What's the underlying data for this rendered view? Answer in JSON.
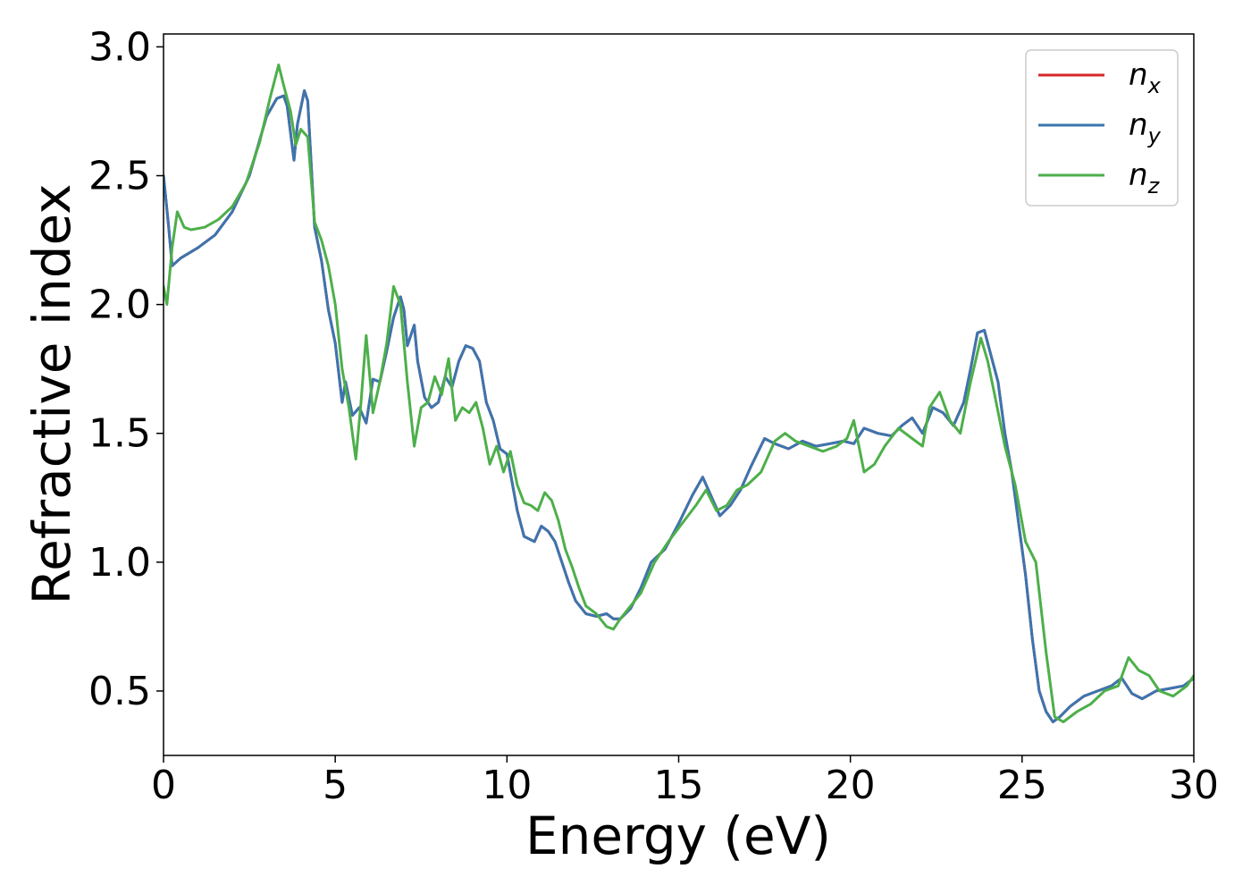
{
  "chart_data": {
    "type": "line",
    "xlabel": "Energy (eV)",
    "ylabel": "Refractive index",
    "xlim": [
      0,
      30
    ],
    "ylim": [
      0.25,
      3.05
    ],
    "xticks": [
      0,
      5,
      10,
      15,
      20,
      25,
      30
    ],
    "yticks": [
      0.5,
      1.0,
      1.5,
      2.0,
      2.5,
      3.0
    ],
    "xtick_labels": [
      "0",
      "5",
      "10",
      "15",
      "20",
      "25",
      "30"
    ],
    "ytick_labels": [
      "0.5",
      "1.0",
      "1.5",
      "2.0",
      "2.5",
      "3.0"
    ],
    "grid": false,
    "legend_position": "top-right",
    "series": [
      {
        "name": "n",
        "subscript": "x",
        "color": "#d62728",
        "x": [
          0,
          0.15,
          0.25,
          0.5,
          1.0,
          1.5,
          2.0,
          2.5,
          3.0,
          3.3,
          3.5,
          3.6,
          3.8,
          3.9,
          4.1,
          4.2,
          4.4,
          4.6,
          4.8,
          5.0,
          5.2,
          5.3,
          5.5,
          5.7,
          5.9,
          6.1,
          6.3,
          6.5,
          6.7,
          6.9,
          7.0,
          7.1,
          7.3,
          7.4,
          7.6,
          7.8,
          8.0,
          8.2,
          8.4,
          8.6,
          8.8,
          9.0,
          9.2,
          9.4,
          9.6,
          9.8,
          10.0,
          10.3,
          10.5,
          10.8,
          11.0,
          11.2,
          11.4,
          11.6,
          11.8,
          12.0,
          12.3,
          12.6,
          12.9,
          13.1,
          13.3,
          13.6,
          13.9,
          14.2,
          14.6,
          15.0,
          15.4,
          15.7,
          15.9,
          16.2,
          16.5,
          16.8,
          17.1,
          17.5,
          17.8,
          18.2,
          18.6,
          19.0,
          19.4,
          19.8,
          20.1,
          20.4,
          20.8,
          21.2,
          21.5,
          21.8,
          22.1,
          22.4,
          22.7,
          23.0,
          23.3,
          23.5,
          23.7,
          23.9,
          24.1,
          24.3,
          24.5,
          24.7,
          24.9,
          25.1,
          25.3,
          25.5,
          25.7,
          25.9,
          26.1,
          26.4,
          26.8,
          27.2,
          27.6,
          27.9,
          28.2,
          28.5,
          28.9,
          29.3,
          29.7,
          30.0
        ],
        "values": [
          2.5,
          2.3,
          2.15,
          2.18,
          2.22,
          2.27,
          2.36,
          2.5,
          2.73,
          2.8,
          2.81,
          2.77,
          2.56,
          2.7,
          2.83,
          2.79,
          2.3,
          2.17,
          1.98,
          1.85,
          1.62,
          1.7,
          1.57,
          1.6,
          1.54,
          1.71,
          1.7,
          1.82,
          1.95,
          2.03,
          1.98,
          1.84,
          1.92,
          1.78,
          1.64,
          1.6,
          1.62,
          1.72,
          1.68,
          1.78,
          1.84,
          1.83,
          1.78,
          1.62,
          1.55,
          1.44,
          1.42,
          1.2,
          1.1,
          1.08,
          1.14,
          1.12,
          1.08,
          1.0,
          0.92,
          0.85,
          0.8,
          0.79,
          0.8,
          0.78,
          0.78,
          0.82,
          0.9,
          1.0,
          1.05,
          1.15,
          1.26,
          1.33,
          1.27,
          1.18,
          1.22,
          1.28,
          1.37,
          1.48,
          1.46,
          1.44,
          1.47,
          1.45,
          1.46,
          1.47,
          1.46,
          1.52,
          1.5,
          1.49,
          1.53,
          1.56,
          1.5,
          1.6,
          1.58,
          1.53,
          1.62,
          1.75,
          1.89,
          1.9,
          1.8,
          1.7,
          1.5,
          1.35,
          1.15,
          0.95,
          0.7,
          0.5,
          0.42,
          0.38,
          0.4,
          0.44,
          0.48,
          0.5,
          0.52,
          0.55,
          0.49,
          0.47,
          0.5,
          0.51,
          0.52,
          0.55
        ]
      },
      {
        "name": "n",
        "subscript": "y",
        "color": "#3b75af",
        "x": [
          0,
          0.15,
          0.25,
          0.5,
          1.0,
          1.5,
          2.0,
          2.5,
          3.0,
          3.3,
          3.5,
          3.6,
          3.8,
          3.9,
          4.1,
          4.2,
          4.4,
          4.6,
          4.8,
          5.0,
          5.2,
          5.3,
          5.5,
          5.7,
          5.9,
          6.1,
          6.3,
          6.5,
          6.7,
          6.9,
          7.0,
          7.1,
          7.3,
          7.4,
          7.6,
          7.8,
          8.0,
          8.2,
          8.4,
          8.6,
          8.8,
          9.0,
          9.2,
          9.4,
          9.6,
          9.8,
          10.0,
          10.3,
          10.5,
          10.8,
          11.0,
          11.2,
          11.4,
          11.6,
          11.8,
          12.0,
          12.3,
          12.6,
          12.9,
          13.1,
          13.3,
          13.6,
          13.9,
          14.2,
          14.6,
          15.0,
          15.4,
          15.7,
          15.9,
          16.2,
          16.5,
          16.8,
          17.1,
          17.5,
          17.8,
          18.2,
          18.6,
          19.0,
          19.4,
          19.8,
          20.1,
          20.4,
          20.8,
          21.2,
          21.5,
          21.8,
          22.1,
          22.4,
          22.7,
          23.0,
          23.3,
          23.5,
          23.7,
          23.9,
          24.1,
          24.3,
          24.5,
          24.7,
          24.9,
          25.1,
          25.3,
          25.5,
          25.7,
          25.9,
          26.1,
          26.4,
          26.8,
          27.2,
          27.6,
          27.9,
          28.2,
          28.5,
          28.9,
          29.3,
          29.7,
          30.0
        ],
        "values": [
          2.5,
          2.3,
          2.15,
          2.18,
          2.22,
          2.27,
          2.36,
          2.5,
          2.73,
          2.8,
          2.81,
          2.77,
          2.56,
          2.7,
          2.83,
          2.79,
          2.3,
          2.17,
          1.98,
          1.85,
          1.62,
          1.7,
          1.57,
          1.6,
          1.54,
          1.71,
          1.7,
          1.82,
          1.95,
          2.03,
          1.98,
          1.84,
          1.92,
          1.78,
          1.64,
          1.6,
          1.62,
          1.72,
          1.68,
          1.78,
          1.84,
          1.83,
          1.78,
          1.62,
          1.55,
          1.44,
          1.42,
          1.2,
          1.1,
          1.08,
          1.14,
          1.12,
          1.08,
          1.0,
          0.92,
          0.85,
          0.8,
          0.79,
          0.8,
          0.78,
          0.78,
          0.82,
          0.9,
          1.0,
          1.05,
          1.15,
          1.26,
          1.33,
          1.27,
          1.18,
          1.22,
          1.28,
          1.37,
          1.48,
          1.46,
          1.44,
          1.47,
          1.45,
          1.46,
          1.47,
          1.46,
          1.52,
          1.5,
          1.49,
          1.53,
          1.56,
          1.5,
          1.6,
          1.58,
          1.53,
          1.62,
          1.75,
          1.89,
          1.9,
          1.8,
          1.7,
          1.5,
          1.35,
          1.15,
          0.95,
          0.7,
          0.5,
          0.42,
          0.38,
          0.4,
          0.44,
          0.48,
          0.5,
          0.52,
          0.55,
          0.49,
          0.47,
          0.5,
          0.51,
          0.52,
          0.55
        ]
      },
      {
        "name": "n",
        "subscript": "z",
        "color": "#4daf4a",
        "x": [
          0,
          0.1,
          0.25,
          0.4,
          0.6,
          0.8,
          1.2,
          1.6,
          2.0,
          2.4,
          2.8,
          3.1,
          3.35,
          3.5,
          3.7,
          3.85,
          4.0,
          4.2,
          4.4,
          4.6,
          4.8,
          5.0,
          5.2,
          5.4,
          5.6,
          5.75,
          5.9,
          6.1,
          6.3,
          6.5,
          6.7,
          6.9,
          7.1,
          7.3,
          7.5,
          7.7,
          7.9,
          8.1,
          8.3,
          8.5,
          8.7,
          8.9,
          9.1,
          9.3,
          9.5,
          9.7,
          9.9,
          10.1,
          10.3,
          10.5,
          10.7,
          10.9,
          11.1,
          11.3,
          11.5,
          11.7,
          11.9,
          12.1,
          12.3,
          12.6,
          12.9,
          13.1,
          13.3,
          13.6,
          13.9,
          14.3,
          14.7,
          15.1,
          15.5,
          15.8,
          16.1,
          16.4,
          16.7,
          17.0,
          17.4,
          17.8,
          18.1,
          18.4,
          18.8,
          19.2,
          19.6,
          19.9,
          20.1,
          20.4,
          20.7,
          21.0,
          21.4,
          21.8,
          22.1,
          22.3,
          22.6,
          22.9,
          23.2,
          23.5,
          23.8,
          24.0,
          24.2,
          24.5,
          24.8,
          25.1,
          25.4,
          25.7,
          25.95,
          26.2,
          26.6,
          27.0,
          27.4,
          27.8,
          28.1,
          28.4,
          28.7,
          29.0,
          29.4,
          29.8,
          30.0
        ],
        "values": [
          2.07,
          2.0,
          2.22,
          2.36,
          2.3,
          2.29,
          2.3,
          2.33,
          2.38,
          2.47,
          2.63,
          2.8,
          2.93,
          2.85,
          2.75,
          2.62,
          2.68,
          2.65,
          2.32,
          2.25,
          2.15,
          2.0,
          1.75,
          1.6,
          1.4,
          1.62,
          1.88,
          1.58,
          1.7,
          1.85,
          2.07,
          2.0,
          1.7,
          1.45,
          1.6,
          1.62,
          1.72,
          1.65,
          1.79,
          1.55,
          1.6,
          1.58,
          1.62,
          1.52,
          1.38,
          1.45,
          1.35,
          1.43,
          1.3,
          1.23,
          1.22,
          1.2,
          1.27,
          1.24,
          1.16,
          1.05,
          0.98,
          0.9,
          0.83,
          0.8,
          0.75,
          0.74,
          0.78,
          0.83,
          0.88,
          1.0,
          1.08,
          1.15,
          1.22,
          1.28,
          1.2,
          1.22,
          1.28,
          1.3,
          1.35,
          1.47,
          1.5,
          1.47,
          1.45,
          1.43,
          1.45,
          1.48,
          1.55,
          1.35,
          1.38,
          1.45,
          1.52,
          1.48,
          1.45,
          1.6,
          1.66,
          1.55,
          1.5,
          1.7,
          1.87,
          1.78,
          1.65,
          1.45,
          1.3,
          1.08,
          1.0,
          0.65,
          0.4,
          0.38,
          0.42,
          0.45,
          0.5,
          0.52,
          0.63,
          0.58,
          0.56,
          0.5,
          0.48,
          0.52,
          0.56
        ]
      }
    ]
  }
}
